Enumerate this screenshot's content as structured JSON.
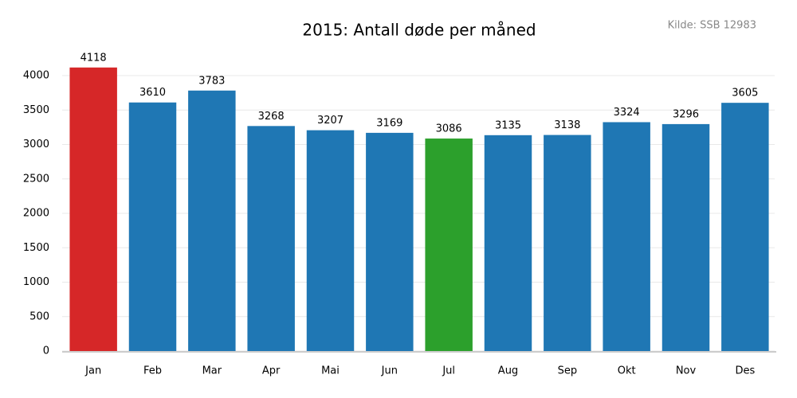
{
  "chart_data": {
    "type": "bar",
    "title": "2015: Antall døde per måned",
    "annotation": "Kilde: SSB 12983",
    "categories": [
      "Jan",
      "Feb",
      "Mar",
      "Apr",
      "Mai",
      "Jun",
      "Jul",
      "Aug",
      "Sep",
      "Okt",
      "Nov",
      "Des"
    ],
    "values": [
      4118,
      3610,
      3783,
      3268,
      3207,
      3169,
      3086,
      3135,
      3138,
      3324,
      3296,
      3605
    ],
    "colors": [
      "#d62728",
      "#1f77b4",
      "#1f77b4",
      "#1f77b4",
      "#1f77b4",
      "#1f77b4",
      "#2ca02c",
      "#1f77b4",
      "#1f77b4",
      "#1f77b4",
      "#1f77b4",
      "#1f77b4"
    ],
    "ylim": [
      0,
      4400
    ],
    "yticks": [
      0,
      500,
      1000,
      1500,
      2000,
      2500,
      3000,
      3500,
      4000
    ],
    "grid": true
  }
}
